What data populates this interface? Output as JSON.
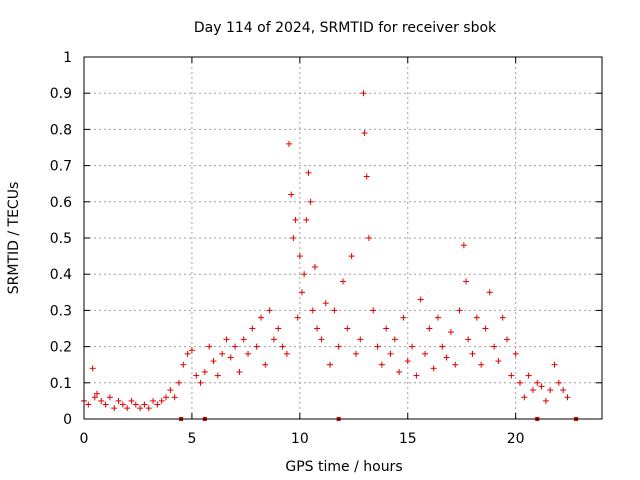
{
  "chart_data": {
    "type": "scatter",
    "title": "Day 114 of 2024, SRMTID for receiver sbok",
    "xlabel": "GPS time / hours",
    "ylabel": "SRMTID / TECUs",
    "xlim": [
      0,
      24
    ],
    "ylim": [
      0,
      1
    ],
    "x_ticks": [
      "0",
      "5",
      "10",
      "15",
      "20"
    ],
    "y_ticks": [
      "0",
      "0.1",
      "0.2",
      "0.3",
      "0.4",
      "0.5",
      "0.6",
      "0.7",
      "0.8",
      "0.9",
      "1"
    ],
    "grid": true,
    "marker": "+",
    "color": "#e00000",
    "series": [
      {
        "name": "SRMTID",
        "x": [
          0.0,
          0.2,
          0.4,
          0.5,
          0.6,
          0.8,
          1.0,
          1.2,
          1.4,
          1.6,
          1.8,
          2.0,
          2.2,
          2.4,
          2.6,
          2.8,
          3.0,
          3.2,
          3.4,
          3.6,
          3.8,
          4.0,
          4.2,
          4.4,
          4.6,
          4.8,
          5.0,
          5.2,
          5.4,
          5.6,
          5.8,
          6.0,
          6.2,
          6.4,
          6.6,
          6.8,
          7.0,
          7.2,
          7.4,
          7.6,
          7.8,
          8.0,
          8.2,
          8.4,
          8.6,
          8.8,
          9.0,
          9.2,
          9.4,
          9.5,
          9.6,
          9.7,
          9.8,
          9.9,
          10.0,
          10.1,
          10.2,
          10.3,
          10.4,
          10.5,
          10.6,
          10.7,
          10.8,
          11.0,
          11.2,
          11.4,
          11.6,
          11.8,
          12.0,
          12.2,
          12.4,
          12.6,
          12.8,
          12.95,
          13.0,
          13.1,
          13.2,
          13.4,
          13.6,
          13.8,
          14.0,
          14.2,
          14.4,
          14.6,
          14.8,
          15.0,
          15.2,
          15.4,
          15.6,
          15.8,
          16.0,
          16.2,
          16.4,
          16.6,
          16.8,
          17.0,
          17.2,
          17.4,
          17.6,
          17.7,
          17.8,
          18.0,
          18.2,
          18.4,
          18.6,
          18.8,
          19.0,
          19.2,
          19.4,
          19.6,
          19.8,
          20.0,
          20.2,
          20.4,
          20.6,
          20.8,
          21.0,
          21.2,
          21.4,
          21.6,
          21.8,
          22.0,
          22.2,
          22.4
        ],
        "y": [
          0.05,
          0.04,
          0.14,
          0.06,
          0.07,
          0.05,
          0.04,
          0.06,
          0.03,
          0.05,
          0.04,
          0.03,
          0.05,
          0.04,
          0.03,
          0.04,
          0.03,
          0.05,
          0.04,
          0.05,
          0.06,
          0.08,
          0.06,
          0.1,
          0.15,
          0.18,
          0.19,
          0.12,
          0.1,
          0.13,
          0.2,
          0.16,
          0.12,
          0.18,
          0.22,
          0.17,
          0.2,
          0.13,
          0.22,
          0.18,
          0.25,
          0.2,
          0.28,
          0.15,
          0.3,
          0.22,
          0.25,
          0.2,
          0.18,
          0.76,
          0.62,
          0.5,
          0.55,
          0.28,
          0.45,
          0.35,
          0.4,
          0.55,
          0.68,
          0.6,
          0.3,
          0.42,
          0.25,
          0.22,
          0.32,
          0.15,
          0.3,
          0.2,
          0.38,
          0.25,
          0.45,
          0.18,
          0.22,
          0.9,
          0.79,
          0.67,
          0.5,
          0.3,
          0.2,
          0.15,
          0.25,
          0.18,
          0.22,
          0.13,
          0.28,
          0.16,
          0.2,
          0.12,
          0.33,
          0.18,
          0.25,
          0.14,
          0.28,
          0.2,
          0.17,
          0.24,
          0.15,
          0.3,
          0.48,
          0.38,
          0.22,
          0.18,
          0.28,
          0.15,
          0.25,
          0.35,
          0.2,
          0.16,
          0.28,
          0.22,
          0.12,
          0.18,
          0.1,
          0.06,
          0.12,
          0.08,
          0.1,
          0.09,
          0.05,
          0.08,
          0.15,
          0.1,
          0.08,
          0.06
        ]
      }
    ],
    "gap_markers_x": [
      4.5,
      5.6,
      11.8,
      21.0,
      22.8
    ]
  }
}
